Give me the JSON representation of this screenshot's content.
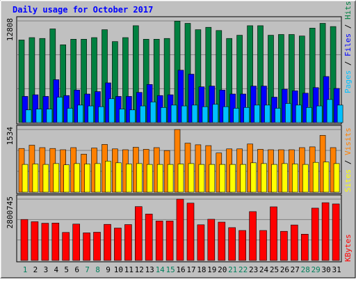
{
  "chart_data": {
    "type": "bar",
    "title": "Daily usage for October 2017",
    "categories": [
      "1",
      "2",
      "3",
      "4",
      "5",
      "6",
      "7",
      "8",
      "9",
      "10",
      "11",
      "12",
      "13",
      "14",
      "15",
      "16",
      "17",
      "18",
      "19",
      "20",
      "21",
      "22",
      "23",
      "24",
      "25",
      "26",
      "27",
      "28",
      "29",
      "30",
      "31"
    ],
    "weekend_days": [
      1,
      7,
      8,
      14,
      15,
      21,
      22,
      28,
      29
    ],
    "panels": [
      {
        "id": "hits_files_pages",
        "ymax_label": "12808",
        "ylim": [
          0,
          12808
        ],
        "series": [
          {
            "name": "Hits",
            "color": "#008040",
            "values": [
              10400,
              10700,
              10600,
              11800,
              9800,
              10500,
              10500,
              10700,
              11700,
              10200,
              10700,
              12200,
              10500,
              10500,
              10600,
              12780,
              12500,
              11700,
              12000,
              11600,
              10600,
              11000,
              12200,
              12200,
              11000,
              11100,
              11100,
              10900,
              11900,
              12500,
              12100
            ]
          },
          {
            "name": "Files",
            "color": "#0000ff",
            "values": [
              3300,
              3500,
              3300,
              5400,
              3400,
              4100,
              3600,
              3900,
              5000,
              3300,
              3300,
              3800,
              4800,
              3400,
              3500,
              6600,
              6100,
              4500,
              4600,
              4100,
              3600,
              3600,
              4600,
              4600,
              3200,
              4200,
              4000,
              3700,
              4400,
              5800,
              4300
            ]
          },
          {
            "name": "Pages",
            "color": "#00c0ff",
            "values": [
              1600,
              1700,
              1700,
              3200,
              1800,
              2200,
              2100,
              2000,
              3000,
              1700,
              1600,
              2100,
              2600,
              1900,
              2200,
              2100,
              2200,
              2000,
              2300,
              2000,
              1800,
              1900,
              2200,
              2200,
              1800,
              2400,
              2200,
              1900,
              2100,
              2900,
              2200
            ]
          }
        ]
      },
      {
        "id": "visits_sites",
        "ymax_label": "1534",
        "ylim": [
          0,
          1534
        ],
        "series": [
          {
            "name": "Visits",
            "color": "#ff8000",
            "values": [
              1070,
              1150,
              1090,
              1070,
              1040,
              1090,
              930,
              1080,
              1170,
              1060,
              1040,
              1100,
              1050,
              1090,
              1020,
              1534,
              1200,
              1160,
              1140,
              960,
              1060,
              1060,
              1180,
              1050,
              1040,
              1040,
              1040,
              1090,
              1110,
              1390,
              1090
            ]
          },
          {
            "name": "Sites",
            "color": "#ffff00",
            "values": [
              680,
              690,
              680,
              700,
              670,
              700,
              690,
              700,
              760,
              720,
              690,
              700,
              680,
              680,
              680,
              690,
              700,
              680,
              680,
              680,
              680,
              680,
              720,
              700,
              680,
              700,
              690,
              680,
              730,
              740,
              700
            ]
          }
        ]
      },
      {
        "id": "kbytes",
        "ymax_label": "2800745",
        "ylim": [
          0,
          2800745
        ],
        "series": [
          {
            "name": "KBytes",
            "color": "#ff0000",
            "values": [
              1870000,
              1770000,
              1700000,
              1710000,
              1280000,
              1660000,
              1260000,
              1290000,
              1650000,
              1480000,
              1640000,
              2460000,
              2120000,
              1800000,
              1800000,
              2800745,
              2620000,
              1630000,
              1880000,
              1750000,
              1500000,
              1370000,
              2230000,
              1370000,
              2450000,
              1330000,
              1620000,
              1200000,
              2390000,
              2640000,
              2580000
            ]
          }
        ]
      }
    ]
  }
}
